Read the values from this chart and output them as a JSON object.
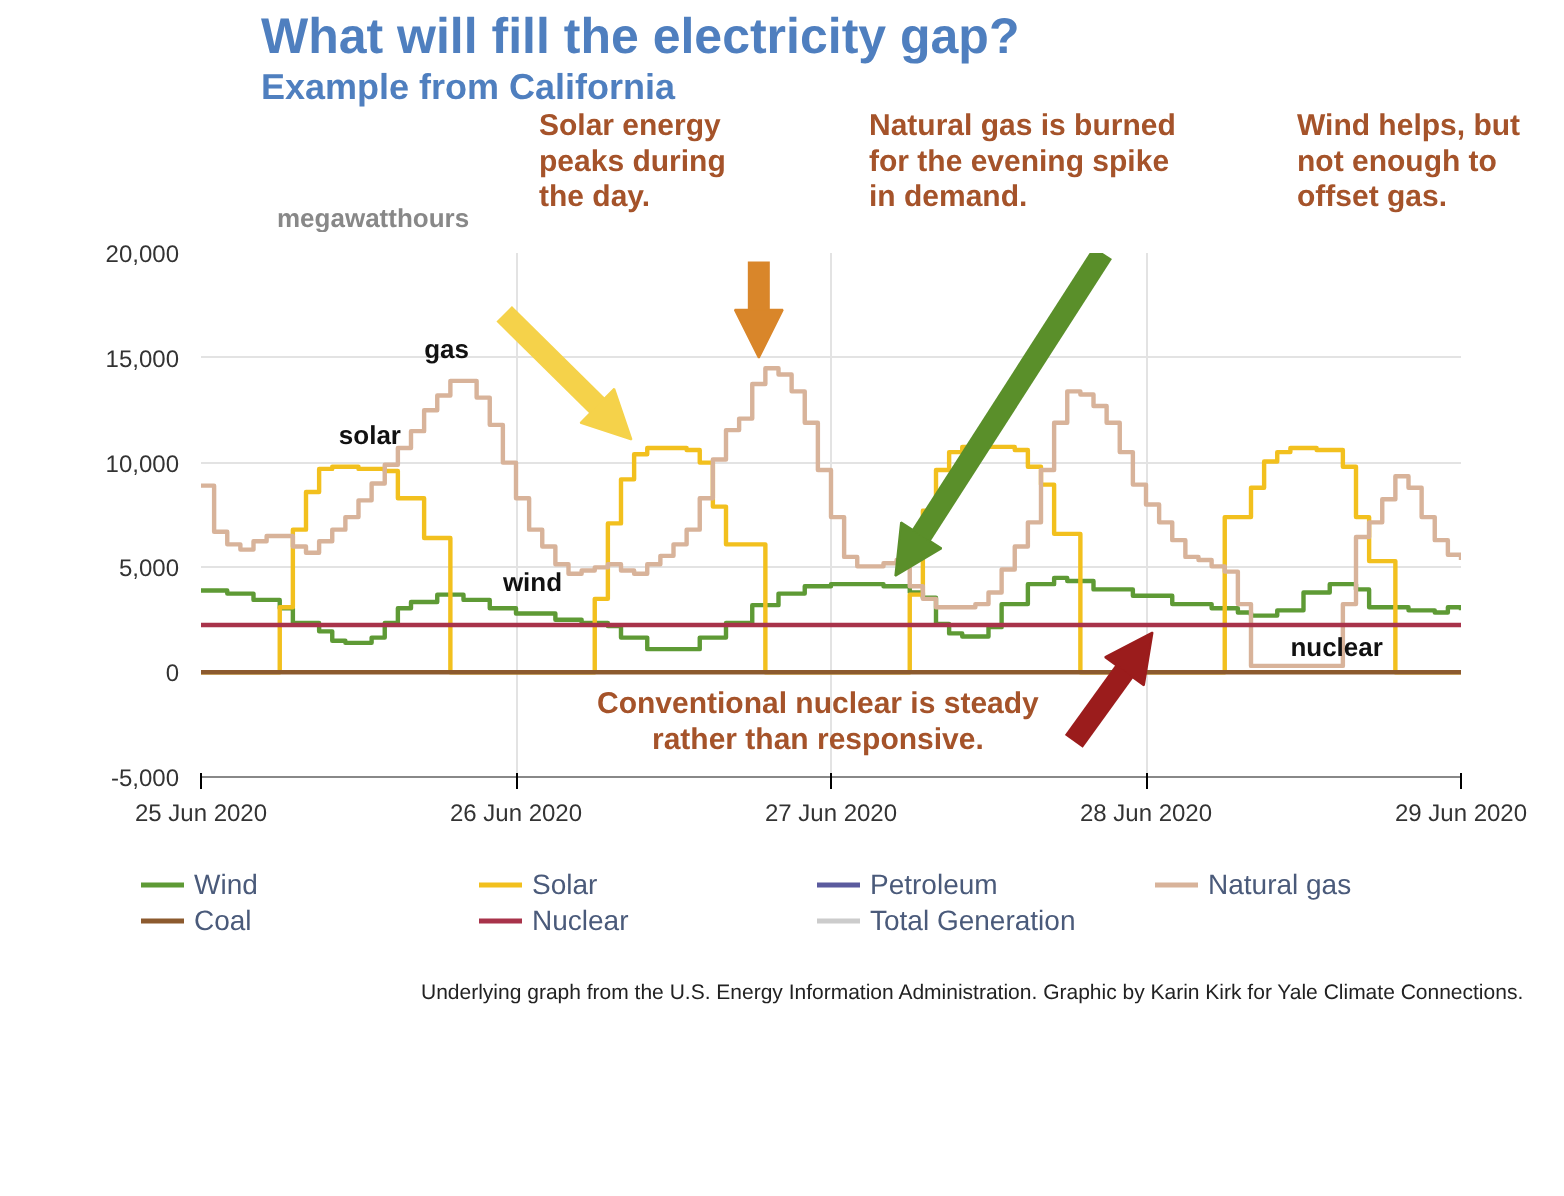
{
  "chart_data": {
    "type": "step",
    "title": "What will fill the electricity gap?",
    "subtitle": "Example from California",
    "ylabel": "megawatthours",
    "xlim": [
      "2020-06-25T00:00",
      "2020-06-29T00:00"
    ],
    "xticks": [
      {
        "value": "2020-06-25",
        "label": "25 Jun 2020"
      },
      {
        "value": "2020-06-26",
        "label": "26 Jun 2020"
      },
      {
        "value": "2020-06-27",
        "label": "27 Jun 2020"
      },
      {
        "value": "2020-06-28",
        "label": "28 Jun 2020"
      },
      {
        "value": "2020-06-29",
        "label": "29 Jun 2020"
      }
    ],
    "ylim": [
      -5000,
      20000
    ],
    "yticks": [
      {
        "value": -5000,
        "label": "-5,000"
      },
      {
        "value": 0,
        "label": "0"
      },
      {
        "value": 5000,
        "label": "5,000"
      },
      {
        "value": 10000,
        "label": "10,000"
      },
      {
        "value": 15000,
        "label": "15,000"
      },
      {
        "value": 20000,
        "label": "20,000"
      }
    ],
    "grid": true,
    "legend": "bottom",
    "series": [
      {
        "name": "Wind",
        "color": "#5e9a35",
        "x": [
          "2020-06-25T00:00",
          "2020-06-25T02:00",
          "2020-06-25T04:00",
          "2020-06-25T06:00",
          "2020-06-25T07:00",
          "2020-06-25T09:00",
          "2020-06-25T10:00",
          "2020-06-25T11:00",
          "2020-06-25T13:00",
          "2020-06-25T14:00",
          "2020-06-25T15:00",
          "2020-06-25T16:00",
          "2020-06-25T18:00",
          "2020-06-25T20:00",
          "2020-06-25T22:00",
          "2020-06-26T00:00",
          "2020-06-26T03:00",
          "2020-06-26T05:00",
          "2020-06-26T07:00",
          "2020-06-26T08:00",
          "2020-06-26T10:00",
          "2020-06-26T12:00",
          "2020-06-26T14:00",
          "2020-06-26T16:00",
          "2020-06-26T18:00",
          "2020-06-26T20:00",
          "2020-06-26T22:00",
          "2020-06-27T00:00",
          "2020-06-27T02:00",
          "2020-06-27T04:00",
          "2020-06-27T06:00",
          "2020-06-27T07:00",
          "2020-06-27T08:00",
          "2020-06-27T09:00",
          "2020-06-27T10:00",
          "2020-06-27T12:00",
          "2020-06-27T13:00",
          "2020-06-27T15:00",
          "2020-06-27T17:00",
          "2020-06-27T18:00",
          "2020-06-27T20:00",
          "2020-06-27T23:00",
          "2020-06-28T02:00",
          "2020-06-28T05:00",
          "2020-06-28T07:00",
          "2020-06-28T08:00",
          "2020-06-28T10:00",
          "2020-06-28T12:00",
          "2020-06-28T14:00",
          "2020-06-28T16:00",
          "2020-06-28T17:00",
          "2020-06-28T20:00",
          "2020-06-28T22:00",
          "2020-06-28T23:00",
          "2020-06-29T00:00"
        ],
        "values": [
          3900,
          3750,
          3450,
          3050,
          2350,
          1950,
          1500,
          1400,
          1650,
          2350,
          3050,
          3350,
          3700,
          3450,
          3050,
          2800,
          2500,
          2350,
          2200,
          1650,
          1100,
          1100,
          1650,
          2350,
          3200,
          3750,
          4100,
          4200,
          4200,
          4100,
          3800,
          3550,
          2300,
          1850,
          1700,
          2150,
          3250,
          4200,
          4500,
          4350,
          3950,
          3650,
          3250,
          3050,
          2850,
          2700,
          2950,
          3800,
          4200,
          3950,
          3100,
          2950,
          2850,
          3100,
          2950
        ]
      },
      {
        "name": "Solar",
        "color": "#f2c01e",
        "x": [
          "2020-06-25T00:00",
          "2020-06-25T06:00",
          "2020-06-25T07:00",
          "2020-06-25T08:00",
          "2020-06-25T09:00",
          "2020-06-25T10:00",
          "2020-06-25T12:00",
          "2020-06-25T14:00",
          "2020-06-25T15:00",
          "2020-06-25T17:00",
          "2020-06-25T19:00",
          "2020-06-26T06:00",
          "2020-06-26T07:00",
          "2020-06-26T08:00",
          "2020-06-26T09:00",
          "2020-06-26T10:00",
          "2020-06-26T13:00",
          "2020-06-26T14:00",
          "2020-06-26T15:00",
          "2020-06-26T16:00",
          "2020-06-26T19:00",
          "2020-06-27T06:00",
          "2020-06-27T07:00",
          "2020-06-27T08:00",
          "2020-06-27T09:00",
          "2020-06-27T10:00",
          "2020-06-27T14:00",
          "2020-06-27T15:00",
          "2020-06-27T16:00",
          "2020-06-27T17:00",
          "2020-06-27T19:00",
          "2020-06-28T06:00",
          "2020-06-28T08:00",
          "2020-06-28T09:00",
          "2020-06-28T10:00",
          "2020-06-28T11:00",
          "2020-06-28T13:00",
          "2020-06-28T15:00",
          "2020-06-28T16:00",
          "2020-06-28T17:00",
          "2020-06-28T19:00",
          "2020-06-29T00:00"
        ],
        "values": [
          0,
          3100,
          6800,
          8600,
          9700,
          9800,
          9700,
          9600,
          8300,
          6400,
          0,
          3500,
          7100,
          9200,
          10400,
          10700,
          10600,
          10000,
          7900,
          6100,
          0,
          3700,
          7700,
          9650,
          10500,
          10750,
          10600,
          9800,
          8950,
          6600,
          0,
          7400,
          8800,
          10050,
          10500,
          10700,
          10600,
          9800,
          7400,
          5300,
          0,
          0
        ]
      },
      {
        "name": "Petroleum",
        "color": "#5b5b9e",
        "values": [
          null
        ]
      },
      {
        "name": "Natural gas",
        "color": "#d8b39a",
        "x": [
          "2020-06-25T00:00",
          "2020-06-25T01:00",
          "2020-06-25T02:00",
          "2020-06-25T03:00",
          "2020-06-25T04:00",
          "2020-06-25T05:00",
          "2020-06-25T07:00",
          "2020-06-25T08:00",
          "2020-06-25T09:00",
          "2020-06-25T10:00",
          "2020-06-25T11:00",
          "2020-06-25T12:00",
          "2020-06-25T13:00",
          "2020-06-25T14:00",
          "2020-06-25T15:00",
          "2020-06-25T16:00",
          "2020-06-25T17:00",
          "2020-06-25T18:00",
          "2020-06-25T19:00",
          "2020-06-25T21:00",
          "2020-06-25T22:00",
          "2020-06-25T23:00",
          "2020-06-26T00:00",
          "2020-06-26T01:00",
          "2020-06-26T02:00",
          "2020-06-26T03:00",
          "2020-06-26T04:00",
          "2020-06-26T05:00",
          "2020-06-26T06:00",
          "2020-06-26T07:00",
          "2020-06-26T08:00",
          "2020-06-26T09:00",
          "2020-06-26T10:00",
          "2020-06-26T11:00",
          "2020-06-26T12:00",
          "2020-06-26T13:00",
          "2020-06-26T14:00",
          "2020-06-26T15:00",
          "2020-06-26T16:00",
          "2020-06-26T17:00",
          "2020-06-26T18:00",
          "2020-06-26T19:00",
          "2020-06-26T20:00",
          "2020-06-26T21:00",
          "2020-06-26T22:00",
          "2020-06-26T23:00",
          "2020-06-27T00:00",
          "2020-06-27T01:00",
          "2020-06-27T02:00",
          "2020-06-27T04:00",
          "2020-06-27T05:00",
          "2020-06-27T06:00",
          "2020-06-27T07:00",
          "2020-06-27T08:00",
          "2020-06-27T11:00",
          "2020-06-27T12:00",
          "2020-06-27T13:00",
          "2020-06-27T14:00",
          "2020-06-27T15:00",
          "2020-06-27T16:00",
          "2020-06-27T17:00",
          "2020-06-27T18:00",
          "2020-06-27T19:00",
          "2020-06-27T20:00",
          "2020-06-27T21:00",
          "2020-06-27T22:00",
          "2020-06-27T23:00",
          "2020-06-28T00:00",
          "2020-06-28T01:00",
          "2020-06-28T02:00",
          "2020-06-28T03:00",
          "2020-06-28T04:00",
          "2020-06-28T05:00",
          "2020-06-28T06:00",
          "2020-06-28T07:00",
          "2020-06-28T08:00",
          "2020-06-28T15:00",
          "2020-06-28T16:00",
          "2020-06-28T17:00",
          "2020-06-28T18:00",
          "2020-06-28T19:00",
          "2020-06-28T20:00",
          "2020-06-28T21:00",
          "2020-06-28T22:00",
          "2020-06-28T23:00",
          "2020-06-29T00:00"
        ],
        "values": [
          8900,
          6700,
          6100,
          5850,
          6250,
          6500,
          6000,
          5700,
          6250,
          6800,
          7400,
          8200,
          9000,
          9900,
          10700,
          11500,
          12500,
          13200,
          13900,
          13100,
          11800,
          10000,
          8300,
          6800,
          6000,
          5150,
          4700,
          4850,
          5000,
          5150,
          4850,
          4700,
          5150,
          5550,
          6100,
          6800,
          8300,
          10150,
          11550,
          12100,
          13750,
          14500,
          14200,
          13400,
          11900,
          9650,
          7400,
          5500,
          5050,
          5200,
          5350,
          4100,
          3500,
          3100,
          3250,
          3800,
          4900,
          6000,
          7150,
          9650,
          11900,
          13400,
          13250,
          12700,
          11900,
          10500,
          8950,
          8000,
          7150,
          6300,
          5500,
          5350,
          5050,
          4800,
          3250,
          300,
          3250,
          6450,
          7150,
          8250,
          9350,
          8800,
          7400,
          6300,
          5600,
          5350
        ]
      },
      {
        "name": "Coal",
        "color": "#8c5a2e",
        "x": [
          "2020-06-25T00:00",
          "2020-06-29T00:00"
        ],
        "values": [
          0,
          0
        ]
      },
      {
        "name": "Nuclear",
        "color": "#a8334a",
        "x": [
          "2020-06-25T00:00",
          "2020-06-29T00:00"
        ],
        "values": [
          2250,
          2250
        ]
      },
      {
        "name": "Total Generation",
        "color": "#cccccc",
        "values": [
          null
        ]
      }
    ],
    "annotations": [
      "Solar energy\npeaks during\nthe day.",
      "Natural gas is burned\nfor the evening spike\nin demand.",
      "Wind helps, but\nnot enough to\noffset gas.",
      "Conventional nuclear is steady\nrather than responsive.",
      "solar",
      "gas",
      "wind",
      "nuclear",
      "Underlying graph from the U.S. Energy Information Administration. Graphic by Karin Kirk for Yale Climate Connections."
    ]
  }
}
